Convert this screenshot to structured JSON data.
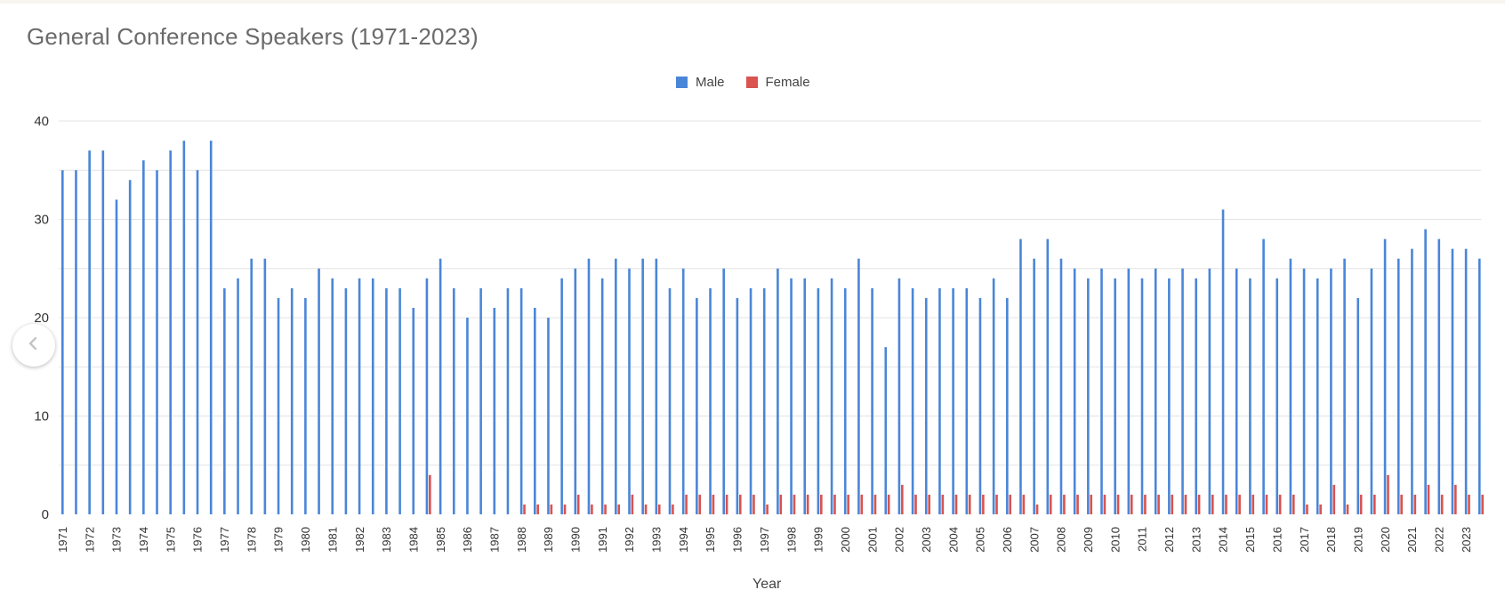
{
  "colors": {
    "male": "#4a86d8",
    "female": "#d9534f",
    "grid": "#e3e3e3",
    "text": "#333333"
  },
  "icons": {
    "previous": "chevron-left-icon"
  },
  "chart_data": {
    "type": "bar",
    "title": "General Conference Speakers (1971-2023)",
    "xlabel": "Year",
    "ylabel": "",
    "ylim": [
      0,
      40
    ],
    "yticks": [
      0,
      10,
      20,
      30,
      40
    ],
    "grid": true,
    "legend": "top-center",
    "tick_labels": [
      "1971",
      "1972",
      "1973",
      "1974",
      "1975",
      "1976",
      "1977",
      "1978",
      "1979",
      "1980",
      "1981",
      "1982",
      "1983",
      "1984",
      "1985",
      "1986",
      "1987",
      "1988",
      "1989",
      "1990",
      "1991",
      "1992",
      "1993",
      "1994",
      "1995",
      "1996",
      "1997",
      "1998",
      "1999",
      "2000",
      "2001",
      "2002",
      "2003",
      "2004",
      "2005",
      "2006",
      "2007",
      "2008",
      "2009",
      "2010",
      "2011",
      "2012",
      "2013",
      "2014",
      "2015",
      "2016",
      "2017",
      "2018",
      "2019",
      "2020",
      "2021",
      "2022",
      "2023"
    ],
    "categories": [
      "1971-04",
      "1971-10",
      "1972-04",
      "1972-10",
      "1973-04",
      "1973-10",
      "1974-04",
      "1974-10",
      "1975-04",
      "1975-10",
      "1976-04",
      "1976-10",
      "1977-04",
      "1977-10",
      "1978-04",
      "1978-10",
      "1979-04",
      "1979-10",
      "1980-04",
      "1980-10",
      "1981-04",
      "1981-10",
      "1982-04",
      "1982-10",
      "1983-04",
      "1983-10",
      "1984-04",
      "1984-10",
      "1985-04",
      "1985-10",
      "1986-04",
      "1986-10",
      "1987-04",
      "1987-10",
      "1988-04",
      "1988-10",
      "1989-04",
      "1989-10",
      "1990-04",
      "1990-10",
      "1991-04",
      "1991-10",
      "1992-04",
      "1992-10",
      "1993-04",
      "1993-10",
      "1994-04",
      "1994-10",
      "1995-04",
      "1995-10",
      "1996-04",
      "1996-10",
      "1997-04",
      "1997-10",
      "1998-04",
      "1998-10",
      "1999-04",
      "1999-10",
      "2000-04",
      "2000-10",
      "2001-04",
      "2001-10",
      "2002-04",
      "2002-10",
      "2003-04",
      "2003-10",
      "2004-04",
      "2004-10",
      "2005-04",
      "2005-10",
      "2006-04",
      "2006-10",
      "2007-04",
      "2007-10",
      "2008-04",
      "2008-10",
      "2009-04",
      "2009-10",
      "2010-04",
      "2010-10",
      "2011-04",
      "2011-10",
      "2012-04",
      "2012-10",
      "2013-04",
      "2013-10",
      "2014-04",
      "2014-10",
      "2015-04",
      "2015-10",
      "2016-04",
      "2016-10",
      "2017-04",
      "2017-10",
      "2018-04",
      "2018-10",
      "2019-04",
      "2019-10",
      "2020-04",
      "2020-10",
      "2021-04",
      "2021-10",
      "2022-04",
      "2022-10",
      "2023-04",
      "2023-10"
    ],
    "series": [
      {
        "name": "Male",
        "color": "#4a86d8",
        "values": [
          35,
          35,
          37,
          37,
          32,
          34,
          36,
          35,
          37,
          38,
          35,
          38,
          23,
          24,
          26,
          26,
          22,
          23,
          22,
          25,
          24,
          23,
          24,
          24,
          23,
          23,
          21,
          24,
          26,
          23,
          20,
          23,
          21,
          23,
          23,
          21,
          20,
          24,
          25,
          26,
          24,
          26,
          25,
          26,
          26,
          23,
          25,
          22,
          23,
          25,
          22,
          23,
          23,
          25,
          24,
          24,
          23,
          24,
          23,
          26,
          23,
          17,
          24,
          23,
          22,
          23,
          23,
          23,
          22,
          24,
          22,
          28,
          26,
          28,
          26,
          25,
          24,
          25,
          24,
          25,
          24,
          25,
          24,
          25,
          24,
          25,
          31,
          25,
          24,
          28,
          24,
          26,
          25,
          24,
          25,
          26,
          22,
          25,
          28,
          26,
          27,
          29,
          28,
          27,
          27,
          26
        ]
      },
      {
        "name": "Female",
        "color": "#d9534f",
        "values": [
          0,
          0,
          0,
          0,
          0,
          0,
          0,
          0,
          0,
          0,
          0,
          0,
          0,
          0,
          0,
          0,
          0,
          0,
          0,
          0,
          0,
          0,
          0,
          0,
          0,
          0,
          0,
          4,
          0,
          0,
          0,
          0,
          0,
          0,
          1,
          1,
          1,
          1,
          2,
          1,
          1,
          1,
          2,
          1,
          1,
          1,
          2,
          2,
          2,
          2,
          2,
          2,
          1,
          2,
          2,
          2,
          2,
          2,
          2,
          2,
          2,
          2,
          3,
          2,
          2,
          2,
          2,
          2,
          2,
          2,
          2,
          2,
          1,
          2,
          2,
          2,
          2,
          2,
          2,
          2,
          2,
          2,
          2,
          2,
          2,
          2,
          2,
          2,
          2,
          2,
          2,
          2,
          1,
          1,
          3,
          1,
          2,
          2,
          4,
          2,
          2,
          3,
          2,
          3,
          2,
          2
        ]
      }
    ]
  }
}
